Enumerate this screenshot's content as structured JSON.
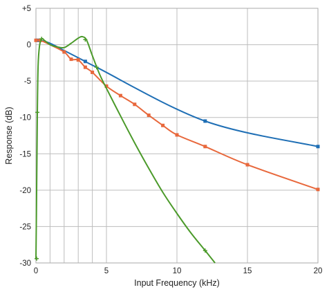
{
  "chart_data": {
    "type": "line",
    "title": "",
    "xlabel": "Input Frequency (kHz)",
    "ylabel": "Response (dB)",
    "xlim": [
      0,
      20
    ],
    "ylim": [
      -30,
      5
    ],
    "grid": true,
    "legend": "none",
    "x_ticks": [
      {
        "value": 0,
        "label": "0"
      },
      {
        "value": 5,
        "label": "5"
      },
      {
        "value": 10,
        "label": "10"
      },
      {
        "value": 15,
        "label": "15"
      },
      {
        "value": 20,
        "label": "20"
      }
    ],
    "x_gridlines": [
      0,
      1,
      2,
      3,
      4,
      5,
      10,
      15,
      20
    ],
    "y_ticks": [
      {
        "value": 5,
        "label": "+5"
      },
      {
        "value": 0,
        "label": "0"
      },
      {
        "value": -5,
        "label": "-5"
      },
      {
        "value": -10,
        "label": "-10"
      },
      {
        "value": -15,
        "label": "-15"
      },
      {
        "value": -20,
        "label": "-20"
      },
      {
        "value": -25,
        "label": "-25"
      },
      {
        "value": -30,
        "label": "-30"
      }
    ],
    "series": [
      {
        "color": "#1f6fb5",
        "marker": "square",
        "points": [
          [
            0,
            0.6
          ],
          [
            0.3,
            0.6
          ],
          [
            1,
            0.2
          ],
          [
            2,
            -0.8
          ],
          [
            3.5,
            -2.3
          ],
          [
            4.3,
            -3.1
          ],
          [
            12,
            -10.5
          ],
          [
            20,
            -14
          ]
        ],
        "markers": [
          [
            0.1,
            0.6
          ],
          [
            0.3,
            0.6
          ],
          [
            3.5,
            -2.3
          ],
          [
            12,
            -10.5
          ],
          [
            20,
            -14
          ]
        ]
      },
      {
        "color": "#e8683c",
        "marker": "square",
        "points": [
          [
            0,
            0.6
          ],
          [
            0.3,
            0.6
          ],
          [
            1,
            0
          ],
          [
            2,
            -1
          ],
          [
            2.5,
            -2
          ],
          [
            3,
            -2.1
          ],
          [
            3.5,
            -3.1
          ],
          [
            4,
            -3.8
          ],
          [
            5,
            -5.7
          ],
          [
            6,
            -7
          ],
          [
            7,
            -8.2
          ],
          [
            8,
            -9.7
          ],
          [
            9,
            -11.1
          ],
          [
            10,
            -12.4
          ],
          [
            12,
            -14
          ],
          [
            15,
            -16.5
          ],
          [
            20,
            -19.9
          ]
        ],
        "markers": [
          [
            0,
            0.6
          ],
          [
            0.3,
            0.6
          ],
          [
            2,
            -1
          ],
          [
            2.5,
            -2
          ],
          [
            3,
            -2.1
          ],
          [
            3.5,
            -3.1
          ],
          [
            4,
            -3.8
          ],
          [
            5,
            -5.7
          ],
          [
            6,
            -7
          ],
          [
            7,
            -8.2
          ],
          [
            8,
            -9.7
          ],
          [
            9,
            -11.1
          ],
          [
            10,
            -12.4
          ],
          [
            12,
            -14
          ],
          [
            15,
            -16.5
          ],
          [
            20,
            -19.9
          ]
        ]
      },
      {
        "color": "#4b9a2a",
        "marker": "plus",
        "points": [
          [
            0,
            -29.5
          ],
          [
            0.05,
            -20
          ],
          [
            0.1,
            -9.5
          ],
          [
            0.15,
            -3
          ],
          [
            0.25,
            -0.2
          ],
          [
            0.4,
            0.8
          ],
          [
            0.6,
            0.6
          ],
          [
            1,
            0
          ],
          [
            1.5,
            -0.3
          ],
          [
            2,
            -0.4
          ],
          [
            2.5,
            0.2
          ],
          [
            3,
            0.9
          ],
          [
            3.3,
            1.1
          ],
          [
            3.6,
            0.6
          ],
          [
            4,
            -1.5
          ],
          [
            4.5,
            -4
          ],
          [
            5,
            -6
          ],
          [
            6,
            -9.8
          ],
          [
            7,
            -13.5
          ],
          [
            8,
            -17
          ],
          [
            9,
            -20.3
          ],
          [
            10,
            -23.2
          ],
          [
            11,
            -25.9
          ],
          [
            12,
            -28.3
          ],
          [
            12.7,
            -30
          ]
        ],
        "markers": [
          [
            0.05,
            -29.4
          ],
          [
            0.1,
            -9.3
          ],
          [
            0.4,
            0.8
          ],
          [
            3.5,
            0.7
          ],
          [
            4.3,
            -3.1
          ],
          [
            12,
            -28.3
          ]
        ]
      }
    ]
  }
}
